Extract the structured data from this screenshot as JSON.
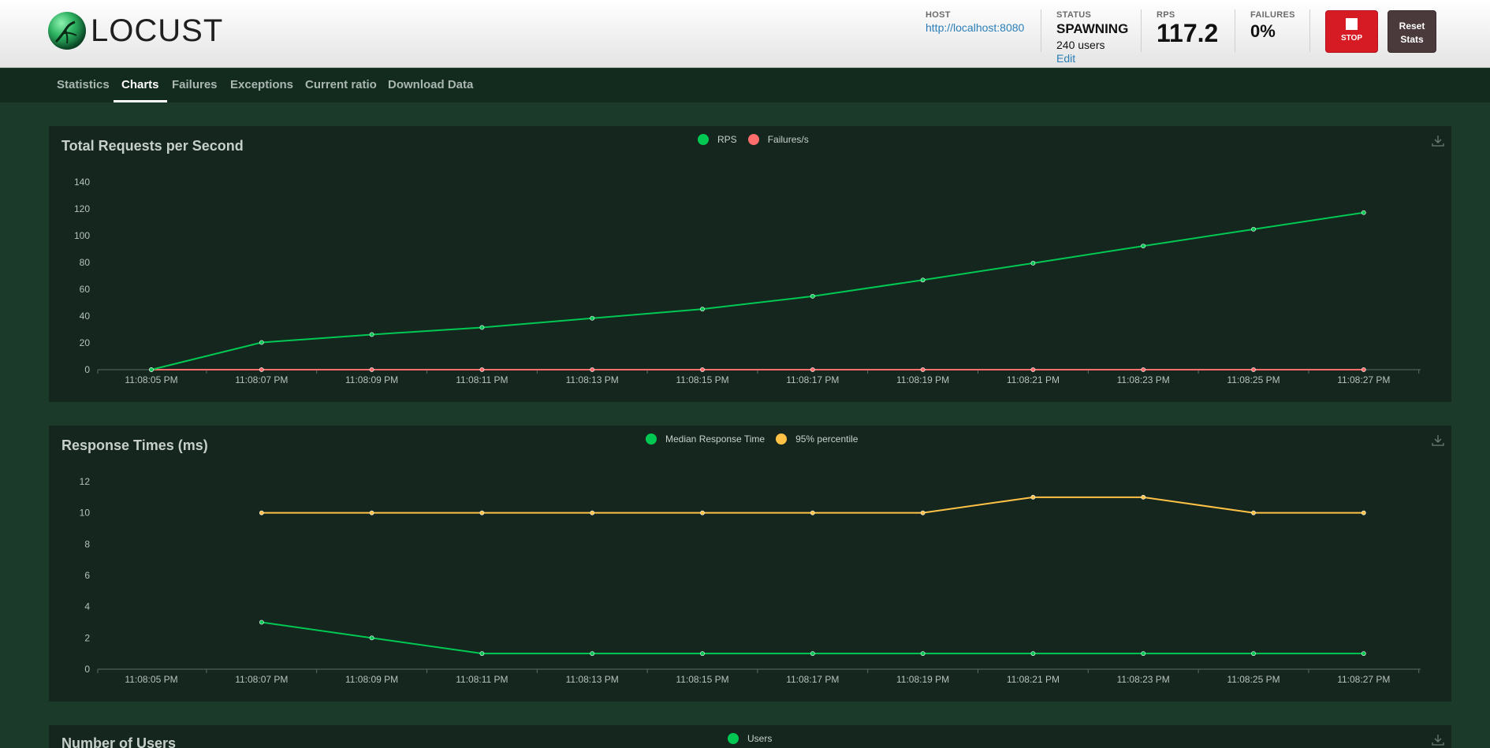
{
  "app": {
    "logo_text": "LOCUST"
  },
  "header": {
    "host": {
      "label": "HOST",
      "value": "http://localhost:8080"
    },
    "status": {
      "label": "STATUS",
      "value": "SPAWNING",
      "users": "240 users",
      "edit": "Edit"
    },
    "rps": {
      "label": "RPS",
      "value": "117.2"
    },
    "failures": {
      "label": "FAILURES",
      "value": "0%"
    },
    "stop_label": "STOP",
    "reset_label_1": "Reset",
    "reset_label_2": "Stats"
  },
  "nav": {
    "tabs": [
      {
        "label": "Statistics"
      },
      {
        "label": "Charts"
      },
      {
        "label": "Failures"
      },
      {
        "label": "Exceptions"
      },
      {
        "label": "Current ratio"
      },
      {
        "label": "Download Data"
      }
    ],
    "active": "Charts"
  },
  "colors": {
    "green": "#00c853",
    "red": "#ff6d6d",
    "yellow": "#ffc247",
    "accent_stop": "#d71b25",
    "host_link": "#2a7fb8"
  },
  "chart_data": [
    {
      "type": "line",
      "title": "Total Requests per Second",
      "x": [
        "11:08:05 PM",
        "11:08:07 PM",
        "11:08:09 PM",
        "11:08:11 PM",
        "11:08:13 PM",
        "11:08:15 PM",
        "11:08:17 PM",
        "11:08:19 PM",
        "11:08:21 PM",
        "11:08:23 PM",
        "11:08:25 PM",
        "11:08:27 PM"
      ],
      "ylim": [
        0,
        140
      ],
      "yticks": [
        0,
        20,
        40,
        60,
        80,
        100,
        120,
        140
      ],
      "series": [
        {
          "name": "RPS",
          "color": "#00c853",
          "values": [
            0,
            20.3,
            26.2,
            31.5,
            38.4,
            45.2,
            54.8,
            66.9,
            79.5,
            92.3,
            104.8,
            117.2
          ]
        },
        {
          "name": "Failures/s",
          "color": "#ff6d6d",
          "values": [
            0,
            0,
            0,
            0,
            0,
            0,
            0,
            0,
            0,
            0,
            0,
            0
          ]
        }
      ],
      "legend": "top-center",
      "grid": false
    },
    {
      "type": "line",
      "title": "Response Times (ms)",
      "x": [
        "11:08:05 PM",
        "11:08:07 PM",
        "11:08:09 PM",
        "11:08:11 PM",
        "11:08:13 PM",
        "11:08:15 PM",
        "11:08:17 PM",
        "11:08:19 PM",
        "11:08:21 PM",
        "11:08:23 PM",
        "11:08:25 PM",
        "11:08:27 PM"
      ],
      "ylim": [
        0,
        12
      ],
      "yticks": [
        0,
        2,
        4,
        6,
        8,
        10,
        12
      ],
      "series": [
        {
          "name": "Median Response Time",
          "color": "#00c853",
          "values": [
            null,
            3,
            2,
            1,
            1,
            1,
            1,
            1,
            1,
            1,
            1,
            1
          ]
        },
        {
          "name": "95% percentile",
          "color": "#ffc247",
          "values": [
            null,
            10,
            10,
            10,
            10,
            10,
            10,
            10,
            11,
            11,
            10,
            10
          ]
        }
      ],
      "legend": "top-center",
      "grid": false
    },
    {
      "type": "line",
      "title": "Number of Users",
      "series": [
        {
          "name": "Users",
          "color": "#00c853",
          "values": []
        }
      ],
      "legend": "top-center"
    }
  ]
}
